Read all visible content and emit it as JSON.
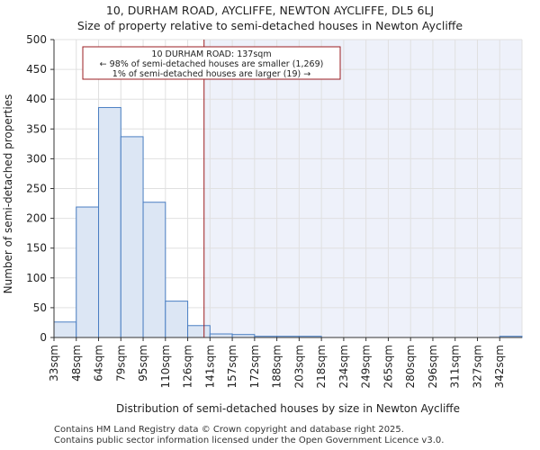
{
  "title": "10, DURHAM ROAD, AYCLIFFE, NEWTON AYCLIFFE, DL5 6LJ",
  "subtitle": "Size of property relative to semi-detached houses in Newton Aycliffe",
  "footer": {
    "line1": "Contains HM Land Registry data © Crown copyright and database right 2025.",
    "line2": "Contains public sector information licensed under the Open Government Licence v3.0."
  },
  "colors": {
    "bar_fill": "#dce6f4",
    "bar_stroke": "#4a7ec2",
    "highlight_bg": "#eef1fa",
    "marker": "#9b1c20",
    "grid": "#e0e0e0"
  },
  "chart_data": {
    "type": "bar",
    "xlabel": "Distribution of semi-detached houses by size in Newton Aycliffe",
    "ylabel": "Number of semi-detached properties",
    "ylim": [
      0,
      500
    ],
    "yticks": [
      0,
      50,
      100,
      150,
      200,
      250,
      300,
      350,
      400,
      450,
      500
    ],
    "categories": [
      "33sqm",
      "48sqm",
      "64sqm",
      "79sqm",
      "95sqm",
      "110sqm",
      "126sqm",
      "141sqm",
      "157sqm",
      "172sqm",
      "188sqm",
      "203sqm",
      "218sqm",
      "234sqm",
      "249sqm",
      "265sqm",
      "280sqm",
      "296sqm",
      "311sqm",
      "327sqm",
      "342sqm"
    ],
    "values": [
      26,
      219,
      386,
      337,
      227,
      61,
      20,
      6,
      5,
      2,
      2,
      2,
      0,
      0,
      0,
      0,
      0,
      0,
      0,
      0,
      2
    ],
    "marker_value": 137,
    "annotation": {
      "line1": "10 DURHAM ROAD: 137sqm",
      "line2": "← 98% of semi-detached houses are smaller (1,269)",
      "line3": "1% of semi-detached houses are larger (19) →"
    },
    "grid": true
  }
}
